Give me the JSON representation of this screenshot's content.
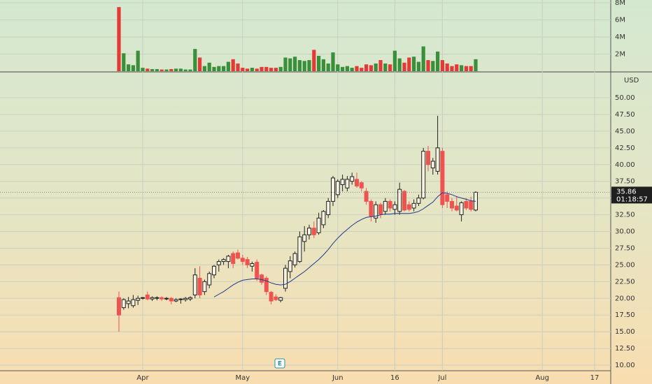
{
  "chart_data": {
    "type": "candlestick",
    "currency": "USD",
    "up_color": "#222222",
    "down_color": "#ef5350",
    "volume_up_color": "#3a8f3a",
    "volume_down_color": "#e53935",
    "categories": [
      null,
      null,
      null,
      null,
      null,
      "Apr",
      null,
      null,
      null,
      null,
      null,
      null,
      null,
      null,
      null,
      null,
      null,
      null,
      null,
      null,
      null,
      null,
      null,
      null,
      null,
      null,
      "May",
      null,
      null,
      null,
      null,
      null,
      null,
      null,
      null,
      null,
      null,
      null,
      null,
      null,
      null,
      null,
      null,
      null,
      null,
      null,
      "Jun",
      null,
      null,
      null,
      null,
      null,
      null,
      null,
      null,
      null,
      null,
      null,
      "16",
      null,
      null,
      null,
      null,
      null,
      null,
      null,
      null,
      null,
      "Jul",
      null,
      null,
      null,
      null,
      null,
      null,
      null,
      null,
      null,
      null,
      null,
      null,
      null,
      null,
      null,
      null,
      null,
      null,
      null,
      null,
      "Aug",
      null,
      null,
      null,
      null,
      null,
      null,
      null,
      null,
      null,
      null,
      "17",
      null,
      null
    ],
    "open": [
      20.1,
      18.6,
      19.2,
      18.9,
      19.7,
      20,
      20.5,
      19.9,
      20,
      20.1,
      19.9,
      20,
      19.6,
      19.8,
      19.8,
      19.9,
      20.5,
      23,
      21,
      22,
      23.5,
      25,
      25.5,
      25.5,
      26.7,
      26.8,
      26,
      25.8,
      24.8,
      25.4,
      23.5,
      23,
      20.9,
      20.2,
      19.7,
      21.5,
      24,
      25,
      25.5,
      28.5,
      29.5,
      30.5,
      29.8,
      31,
      32.5,
      34.5,
      35.5,
      37,
      36.5,
      37.5,
      37.8,
      37.3,
      36,
      34.5,
      32,
      34,
      33,
      34.5,
      33.3,
      33,
      36,
      34,
      33.5,
      34.2,
      35,
      42,
      39.5,
      39,
      42,
      35.5,
      34.5,
      33.8,
      32.5,
      34.5,
      34.5,
      33.2,
      null,
      null,
      null,
      null,
      null,
      null,
      null,
      null,
      null,
      null,
      null,
      null,
      null,
      null,
      null,
      null,
      null,
      null,
      null,
      null,
      null,
      null,
      null,
      null,
      null,
      null,
      null
    ],
    "high": [
      21,
      20,
      20.2,
      20.5,
      20.4,
      20.2,
      21,
      20.3,
      20.3,
      20.3,
      20.2,
      20.2,
      20,
      20,
      20.2,
      20.3,
      24.5,
      24.8,
      22.8,
      24,
      25,
      25.8,
      26,
      26.5,
      27,
      27.3,
      26.5,
      26.2,
      25.5,
      25.8,
      23.7,
      23.3,
      21.1,
      20.6,
      20.2,
      25,
      26.3,
      27,
      30,
      30.8,
      31,
      31.5,
      32.8,
      33.2,
      35,
      38.3,
      37.8,
      38.5,
      38.3,
      38.8,
      38.8,
      37.5,
      36.5,
      34.8,
      34.5,
      34.3,
      35,
      34.8,
      34.5,
      37.3,
      36.2,
      34.5,
      34.8,
      35.5,
      42.5,
      42.8,
      41,
      47.3,
      42.5,
      36,
      35,
      35.3,
      34.5,
      35,
      35.2,
      36,
      null,
      null,
      null,
      null,
      null,
      null,
      null,
      null,
      null,
      null,
      null,
      null,
      null,
      null,
      null,
      null,
      null,
      null,
      null,
      null,
      null,
      null,
      null,
      null,
      null,
      null,
      null
    ],
    "low": [
      15,
      18.3,
      18.5,
      18.6,
      19,
      19.8,
      19.7,
      19.6,
      19.7,
      19.6,
      19.7,
      19.1,
      19.4,
      19.2,
      19.5,
      19.6,
      20,
      20,
      20.5,
      21.5,
      23,
      24,
      25,
      24.5,
      24.5,
      25.8,
      25,
      24.5,
      24,
      22.6,
      22,
      20.5,
      19.1,
      19.6,
      19.4,
      21,
      23,
      24.6,
      25.3,
      27,
      28.8,
      29,
      29.5,
      30.5,
      32,
      33.8,
      35,
      36,
      36,
      37,
      36.5,
      36,
      34,
      31.5,
      31.3,
      32,
      32.5,
      33,
      32.5,
      32.5,
      33,
      33,
      33,
      33.8,
      34.8,
      39,
      38.5,
      38.5,
      33.5,
      33.5,
      33,
      33,
      31.5,
      33.2,
      33,
      33,
      null,
      null,
      null,
      null,
      null,
      null,
      null,
      null,
      null,
      null,
      null,
      null,
      null,
      null,
      null,
      null,
      null,
      null,
      null,
      null,
      null,
      null,
      null,
      null,
      null,
      null,
      null
    ],
    "close": [
      17.5,
      19.8,
      19.6,
      19.8,
      20,
      20.1,
      19.9,
      20.1,
      20.1,
      19.9,
      20,
      19.6,
      19.8,
      19.9,
      20,
      20.1,
      23.5,
      20.5,
      22.5,
      23.7,
      24.8,
      25.5,
      25.8,
      26.3,
      25.2,
      26,
      25.5,
      25,
      25.2,
      23,
      22.4,
      21,
      19.6,
      19.8,
      20.1,
      24.5,
      25.6,
      26.7,
      29.2,
      29.5,
      30.5,
      29.5,
      32,
      33,
      34.5,
      38,
      37.5,
      37.8,
      37.8,
      38.2,
      36.8,
      36.5,
      34.5,
      32.3,
      34,
      32.6,
      34.5,
      33.5,
      34,
      36.3,
      33.2,
      33.3,
      34.2,
      35,
      42,
      40,
      40.5,
      42.5,
      34,
      34.5,
      33.5,
      33.2,
      34.3,
      33.5,
      33.3,
      35.86,
      null,
      null,
      null,
      null,
      null,
      null,
      null,
      null,
      null,
      null,
      null,
      null,
      null,
      null,
      null,
      null,
      null,
      null,
      null,
      null,
      null,
      null,
      null,
      null,
      null,
      null,
      null
    ],
    "ma": {
      "color": "#1e3a8a",
      "values": [
        null,
        null,
        null,
        null,
        null,
        null,
        null,
        null,
        null,
        null,
        null,
        null,
        null,
        null,
        null,
        null,
        null,
        null,
        null,
        null,
        20.2,
        20.6,
        21,
        21.5,
        22,
        22.4,
        22.7,
        22.8,
        22.9,
        22.9,
        22.8,
        22.6,
        22.3,
        22.1,
        22,
        22.1,
        22.5,
        23,
        23.5,
        24,
        24.6,
        25.2,
        25.8,
        26.5,
        27.3,
        28.2,
        29,
        29.7,
        30.3,
        30.9,
        31.4,
        31.8,
        32.1,
        32.2,
        32.3,
        32.5,
        32.6,
        32.6,
        32.7,
        32.7,
        32.7,
        32.7,
        32.8,
        33,
        33.4,
        33.9,
        34.4,
        35.2,
        35.8,
        35.7,
        35.5,
        35.2,
        35,
        34.8,
        34.6,
        34.5,
        null,
        null,
        null,
        null,
        null,
        null,
        null,
        null,
        null,
        null,
        null,
        null,
        null,
        null,
        null,
        null,
        null,
        null,
        null,
        null,
        null,
        null,
        null,
        null,
        null,
        null,
        null
      ]
    },
    "ylim": [
      9.27,
      53.76
    ],
    "yticks": [
      {
        "value": 10,
        "label": "10.00"
      },
      {
        "value": 12.5,
        "label": "12.50"
      },
      {
        "value": 15,
        "label": "15.00"
      },
      {
        "value": 17.5,
        "label": "17.50"
      },
      {
        "value": 20,
        "label": "20.00"
      },
      {
        "value": 22.5,
        "label": "22.50"
      },
      {
        "value": 25,
        "label": "25.00"
      },
      {
        "value": 27.5,
        "label": "27.50"
      },
      {
        "value": 30,
        "label": "30.00"
      },
      {
        "value": 32.5,
        "label": "32.50"
      },
      {
        "value": 35,
        "label": "35.00"
      },
      {
        "value": 37.5,
        "label": "37.50"
      },
      {
        "value": 40,
        "label": "40.00"
      },
      {
        "value": 42.5,
        "label": "42.50"
      },
      {
        "value": 45,
        "label": "45.00"
      },
      {
        "value": 47.5,
        "label": "47.50"
      },
      {
        "value": 50,
        "label": "50.00"
      }
    ],
    "volume": {
      "values": [
        7500000,
        2100000,
        800000,
        700000,
        2400000,
        400000,
        300000,
        250000,
        250000,
        200000,
        200000,
        250000,
        300000,
        300000,
        200000,
        200000,
        2600000,
        1600000,
        600000,
        1000000,
        500000,
        600000,
        600000,
        1100000,
        1400000,
        900000,
        400000,
        300000,
        400000,
        300000,
        500000,
        500000,
        400000,
        400000,
        500000,
        1600000,
        1500000,
        1700000,
        1300000,
        1200000,
        1300000,
        2500000,
        1800000,
        1400000,
        900000,
        2200000,
        800000,
        500000,
        600000,
        400000,
        600000,
        400000,
        800000,
        700000,
        900000,
        1300000,
        900000,
        800000,
        2400000,
        1500000,
        1000000,
        1600000,
        1700000,
        1100000,
        2900000,
        1300000,
        1200000,
        2300000,
        1300000,
        900000,
        600000,
        800000,
        700000,
        600000,
        600000,
        1400000,
        null,
        null,
        null,
        null,
        null,
        null,
        null,
        null,
        null,
        null,
        null,
        null,
        null,
        null,
        null,
        null,
        null,
        null,
        null,
        null,
        null,
        null,
        null,
        null,
        null,
        null,
        null
      ],
      "ylim": [
        0,
        8330000
      ],
      "yticks": [
        {
          "value": 2000000,
          "label": "2M"
        },
        {
          "value": 4000000,
          "label": "4M"
        },
        {
          "value": 6000000,
          "label": "6M"
        },
        {
          "value": 8000000,
          "label": "8M"
        }
      ]
    },
    "last_price": 35.86,
    "countdown": "01:18:57",
    "event_marker": "E"
  }
}
